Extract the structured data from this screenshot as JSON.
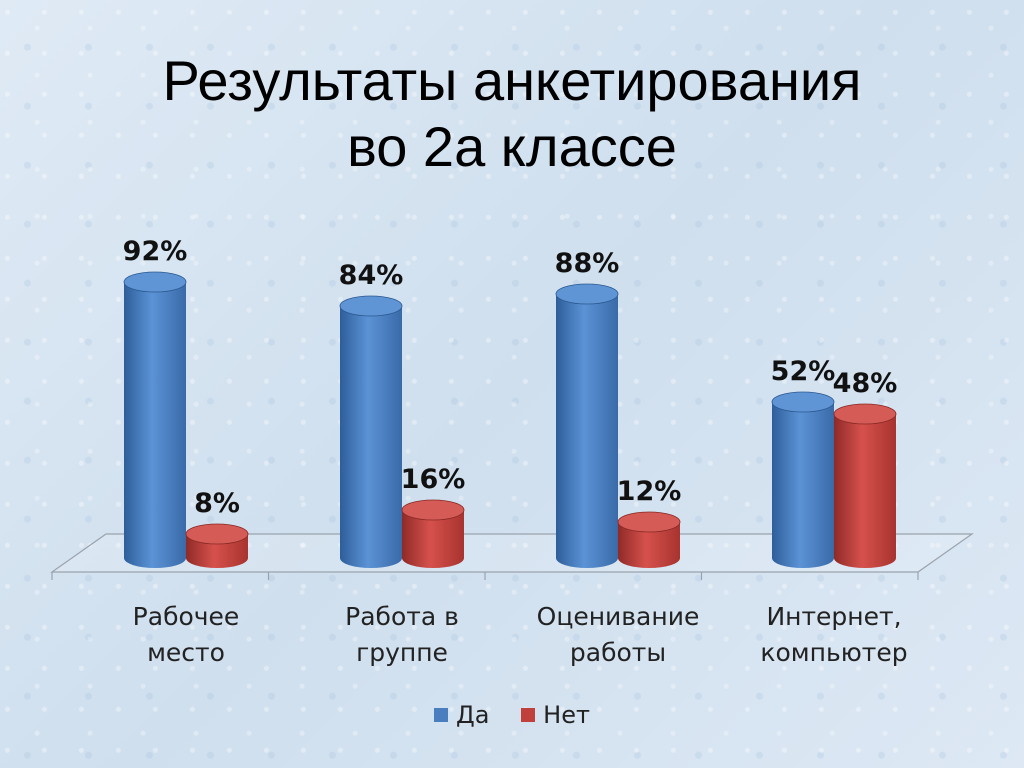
{
  "title_line1": "Результаты анкетирования",
  "title_line2": "во 2а классе",
  "chart_data": {
    "type": "bar",
    "categories": [
      [
        "Рабочее",
        "место"
      ],
      [
        "Работа в",
        "группе"
      ],
      [
        "Оценивание",
        "работы"
      ],
      [
        "Интернет,",
        "компьютер"
      ]
    ],
    "series": [
      {
        "name": "Да",
        "values": [
          92,
          84,
          88,
          52
        ],
        "labels": [
          "92%",
          "84%",
          "88%",
          "52%"
        ],
        "color": "#4a7ebf"
      },
      {
        "name": "Нет",
        "values": [
          8,
          16,
          12,
          48
        ],
        "labels": [
          "8%",
          "16%",
          "12%",
          "48%"
        ],
        "color": "#c0403c"
      }
    ],
    "ylim": [
      0,
      100
    ],
    "legend_position": "bottom",
    "grid": false
  }
}
